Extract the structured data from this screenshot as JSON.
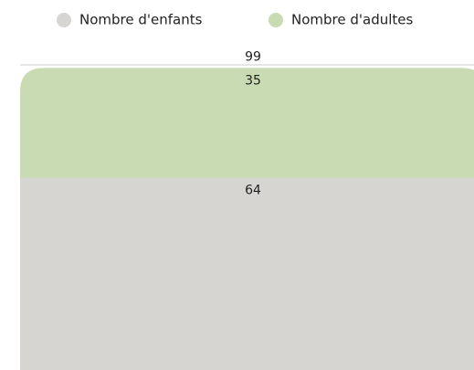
{
  "chart_data": {
    "type": "stacked_bar",
    "categories": [
      null
    ],
    "series": [
      {
        "name": "Nombre d'enfants",
        "color": "#d6d5d2",
        "values": [
          64
        ]
      },
      {
        "name": "Nombre d'adultes",
        "color": "#c8dbb2",
        "values": [
          35
        ]
      }
    ],
    "totals": [
      99
    ],
    "ylim": [
      0,
      100
    ],
    "legend": "top"
  }
}
